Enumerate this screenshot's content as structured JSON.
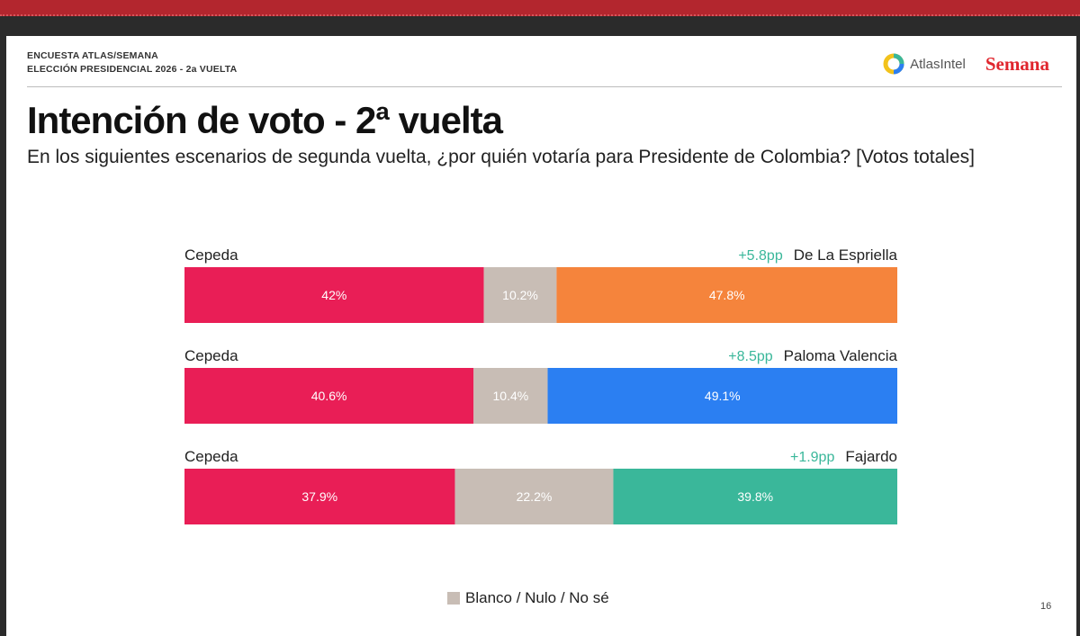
{
  "header": {
    "line1": "ENCUESTA ATLAS/SEMANA",
    "line2": "ELECCIÓN PRESIDENCIAL 2026 - 2a VUELTA",
    "atlas_logo": "AtlasIntel",
    "semana_logo": "Semana"
  },
  "title": "Intención de voto - 2ª vuelta",
  "subtitle": "En los siguientes escenarios de segunda vuelta, ¿por quién votaría para Presidente de Colombia? [Votos totales]",
  "legend": {
    "label": "Blanco / Nulo / No sé"
  },
  "page_number": "16",
  "colors": {
    "cepeda": "#e91e56",
    "blank": "#c8bdb5",
    "de_la_espriella": "#f5843c",
    "paloma_valencia": "#2b7ff2",
    "fajardo": "#3ab79a",
    "margin_text": "#3ab79a"
  },
  "chart_data": {
    "type": "bar",
    "stacked": true,
    "orientation": "horizontal",
    "legend_position": "bottom",
    "scenarios": [
      {
        "left_name": "Cepeda",
        "right_name": "De La Espriella",
        "margin": "+5.8pp",
        "values": [
          42,
          10.2,
          47.8
        ],
        "labels": [
          "42%",
          "10.2%",
          "47.8%"
        ],
        "colors": [
          "#e91e56",
          "#c8bdb5",
          "#f5843c"
        ]
      },
      {
        "left_name": "Cepeda",
        "right_name": "Paloma Valencia",
        "margin": "+8.5pp",
        "values": [
          40.6,
          10.4,
          49.1
        ],
        "labels": [
          "40.6%",
          "10.4%",
          "49.1%"
        ],
        "colors": [
          "#e91e56",
          "#c8bdb5",
          "#2b7ff2"
        ]
      },
      {
        "left_name": "Cepeda",
        "right_name": "Fajardo",
        "margin": "+1.9pp",
        "values": [
          37.9,
          22.2,
          39.8
        ],
        "labels": [
          "37.9%",
          "22.2%",
          "39.8%"
        ],
        "colors": [
          "#e91e56",
          "#c8bdb5",
          "#3ab79a"
        ]
      }
    ]
  }
}
